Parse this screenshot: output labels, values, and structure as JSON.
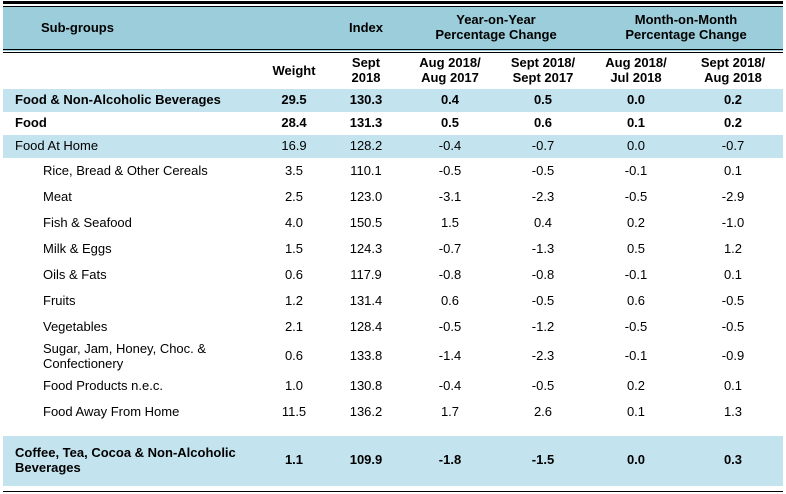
{
  "table": {
    "header_row1": {
      "subgroups": "Sub-groups",
      "index": "Index",
      "yoy_group": "Year-on-Year\nPercentage Change",
      "mom_group": "Month-on-Month\nPercentage Change"
    },
    "header_row2": {
      "weight": "Weight",
      "index_period": "Sept\n2018",
      "yoy_col1": "Aug 2018/\nAug 2017",
      "yoy_col2": "Sept 2018/\nSept 2017",
      "mom_col1": "Aug 2018/\nJul 2018",
      "mom_col2": "Sept 2018/\nAug 2018"
    },
    "rows": [
      {
        "label": "Food & Non-Alcoholic Beverages",
        "values": [
          "29.5",
          "130.3",
          "0.4",
          "0.5",
          "0.0",
          "0.2"
        ],
        "bold": true,
        "highlight": true,
        "indent": 0,
        "compact": true
      },
      {
        "label": "Food",
        "values": [
          "28.4",
          "131.3",
          "0.5",
          "0.6",
          "0.1",
          "0.2"
        ],
        "bold": true,
        "highlight": false,
        "indent": 0,
        "compact": true
      },
      {
        "label": "Food At Home",
        "values": [
          "16.9",
          "128.2",
          "-0.4",
          "-0.7",
          "0.0",
          "-0.7"
        ],
        "bold": false,
        "highlight": true,
        "indent": 0,
        "compact": true
      },
      {
        "label": "Rice, Bread & Other Cereals",
        "values": [
          "3.5",
          "110.1",
          "-0.5",
          "-0.5",
          "-0.1",
          "0.1"
        ],
        "bold": false,
        "highlight": false,
        "indent": 1
      },
      {
        "label": "Meat",
        "values": [
          "2.5",
          "123.0",
          "-3.1",
          "-2.3",
          "-0.5",
          "-2.9"
        ],
        "bold": false,
        "highlight": false,
        "indent": 1
      },
      {
        "label": "Fish & Seafood",
        "values": [
          "4.0",
          "150.5",
          "1.5",
          "0.4",
          "0.2",
          "-1.0"
        ],
        "bold": false,
        "highlight": false,
        "indent": 1
      },
      {
        "label": "Milk & Eggs",
        "values": [
          "1.5",
          "124.3",
          "-0.7",
          "-1.3",
          "0.5",
          "1.2"
        ],
        "bold": false,
        "highlight": false,
        "indent": 1
      },
      {
        "label": "Oils & Fats",
        "values": [
          "0.6",
          "117.9",
          "-0.8",
          "-0.8",
          "-0.1",
          "0.1"
        ],
        "bold": false,
        "highlight": false,
        "indent": 1
      },
      {
        "label": "Fruits",
        "values": [
          "1.2",
          "131.4",
          "0.6",
          "-0.5",
          "0.6",
          "-0.5"
        ],
        "bold": false,
        "highlight": false,
        "indent": 1
      },
      {
        "label": "Vegetables",
        "values": [
          "2.1",
          "128.4",
          "-0.5",
          "-1.2",
          "-0.5",
          "-0.5"
        ],
        "bold": false,
        "highlight": false,
        "indent": 1
      },
      {
        "label": "Sugar, Jam, Honey, Choc. & Confectionery",
        "values": [
          "0.6",
          "133.8",
          "-1.4",
          "-2.3",
          "-0.1",
          "-0.9"
        ],
        "bold": false,
        "highlight": false,
        "indent": 1
      },
      {
        "label": "Food Products n.e.c.",
        "values": [
          "1.0",
          "130.8",
          "-0.4",
          "-0.5",
          "0.2",
          "0.1"
        ],
        "bold": false,
        "highlight": false,
        "indent": 1
      },
      {
        "label": "Food Away From Home",
        "values": [
          "11.5",
          "136.2",
          "1.7",
          "2.6",
          "0.1",
          "1.3"
        ],
        "bold": false,
        "highlight": false,
        "indent": 1
      },
      {
        "label": "Coffee, Tea, Cocoa & Non-Alcoholic Beverages",
        "values": [
          "1.1",
          "109.9",
          "-1.8",
          "-1.5",
          "0.0",
          "0.3"
        ],
        "bold": true,
        "highlight": true,
        "indent": 0,
        "gap_before": true,
        "tall": true
      }
    ]
  },
  "colors": {
    "header_bg": "#9bcdda",
    "highlight_bg": "#c3e3ee",
    "border": "#000000"
  }
}
